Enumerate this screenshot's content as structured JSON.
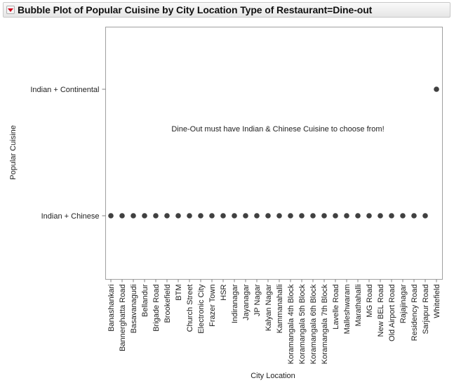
{
  "title_bar": {
    "title": "Bubble Plot of Popular Cuisine by City Location Type of Restaurant=Dine-out",
    "disclosure_icon": "red-down-triangle-icon"
  },
  "colors": {
    "point": "#404040",
    "frame": "#a0a0a0",
    "disclosure": "#d0021b"
  },
  "chart_data": {
    "type": "scatter",
    "title": "Bubble Plot of Popular Cuisine by City Location Type of Restaurant=Dine-out",
    "xlabel": "City Location",
    "ylabel": "Popular Cuisine",
    "x_categories": [
      "Banashankari",
      "Bannerghatta Road",
      "Basavanagudi",
      "Bellandur",
      "Brigade Road",
      "Brookefield",
      "BTM",
      "Church Street",
      "Electronic City",
      "Frazer Town",
      "HSR",
      "Indiranagar",
      "Jayanagar",
      "JP Nagar",
      "Kalyan Nagar",
      "Kammanahalli",
      "Koramangala 4th Block",
      "Koramangala 5th Block",
      "Koramangala 6th Block",
      "Koramangala 7th Block",
      "Lavelle Road",
      "Malleshwaram",
      "Marathahalli",
      "MG Road",
      "New BEL Road",
      "Old Airport Road",
      "Rajajinagar",
      "Residency Road",
      "Sarjapur Road",
      "Whitefield"
    ],
    "y_categories": [
      "Indian + Chinese",
      "Indian + Continental"
    ],
    "points": [
      {
        "x": "Banashankari",
        "y": "Indian + Chinese"
      },
      {
        "x": "Bannerghatta Road",
        "y": "Indian + Chinese"
      },
      {
        "x": "Basavanagudi",
        "y": "Indian + Chinese"
      },
      {
        "x": "Bellandur",
        "y": "Indian + Chinese"
      },
      {
        "x": "Brigade Road",
        "y": "Indian + Chinese"
      },
      {
        "x": "Brookefield",
        "y": "Indian + Chinese"
      },
      {
        "x": "BTM",
        "y": "Indian + Chinese"
      },
      {
        "x": "Church Street",
        "y": "Indian + Chinese"
      },
      {
        "x": "Electronic City",
        "y": "Indian + Chinese"
      },
      {
        "x": "Frazer Town",
        "y": "Indian + Chinese"
      },
      {
        "x": "HSR",
        "y": "Indian + Chinese"
      },
      {
        "x": "Indiranagar",
        "y": "Indian + Chinese"
      },
      {
        "x": "Jayanagar",
        "y": "Indian + Chinese"
      },
      {
        "x": "JP Nagar",
        "y": "Indian + Chinese"
      },
      {
        "x": "Kalyan Nagar",
        "y": "Indian + Chinese"
      },
      {
        "x": "Kammanahalli",
        "y": "Indian + Chinese"
      },
      {
        "x": "Koramangala 4th Block",
        "y": "Indian + Chinese"
      },
      {
        "x": "Koramangala 5th Block",
        "y": "Indian + Chinese"
      },
      {
        "x": "Koramangala 6th Block",
        "y": "Indian + Chinese"
      },
      {
        "x": "Koramangala 7th Block",
        "y": "Indian + Chinese"
      },
      {
        "x": "Lavelle Road",
        "y": "Indian + Chinese"
      },
      {
        "x": "Malleshwaram",
        "y": "Indian + Chinese"
      },
      {
        "x": "Marathahalli",
        "y": "Indian + Chinese"
      },
      {
        "x": "MG Road",
        "y": "Indian + Chinese"
      },
      {
        "x": "New BEL Road",
        "y": "Indian + Chinese"
      },
      {
        "x": "Old Airport Road",
        "y": "Indian + Chinese"
      },
      {
        "x": "Rajajinagar",
        "y": "Indian + Chinese"
      },
      {
        "x": "Residency Road",
        "y": "Indian + Chinese"
      },
      {
        "x": "Sarjapur Road",
        "y": "Indian + Chinese"
      },
      {
        "x": "Whitefield",
        "y": "Indian + Continental"
      }
    ],
    "annotation": "Dine-Out must have Indian & Chinese Cuisine to choose from!",
    "grid": false,
    "legend": "none"
  }
}
